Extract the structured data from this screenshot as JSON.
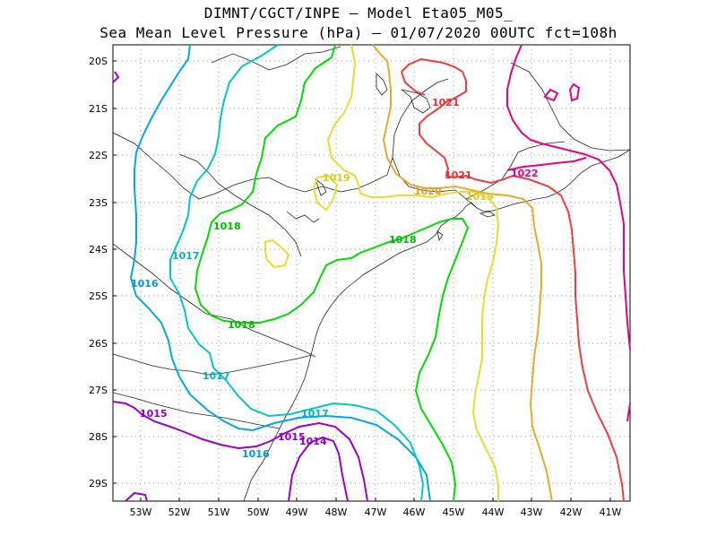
{
  "header": {
    "line1": "DIMNT/CGCT/INPE –  Model Eta05_M05_",
    "line2": "Sea Mean Level Pressure (hPa) – 01/07/2020 00UTC fct=108h"
  },
  "axes": {
    "lat_labels": [
      "20S",
      "21S",
      "22S",
      "23S",
      "24S",
      "25S",
      "26S",
      "27S",
      "28S",
      "29S"
    ],
    "lon_labels": [
      "53W",
      "52W",
      "51W",
      "50W",
      "49W",
      "48W",
      "47W",
      "46W",
      "45W",
      "44W",
      "43W",
      "42W",
      "41W"
    ]
  },
  "colors": {
    "1014": "#9a00c8",
    "1015": "#9a00c8",
    "1016": "#00a8e0",
    "1017": "#00c8c8",
    "1018": "#00dc00",
    "1019": "#e6dc32",
    "1020": "#e6aa28",
    "1021": "#f03c3c",
    "1022": "#e60082"
  },
  "contour_labels": [
    {
      "text": "1021",
      "color": "#e83030"
    },
    {
      "text": "1021",
      "color": "#e83030"
    },
    {
      "text": "1022",
      "color": "#e00080"
    },
    {
      "text": "1019",
      "color": "#d6cc20"
    },
    {
      "text": "1020",
      "color": "#e0a020"
    },
    {
      "text": "1019",
      "color": "#d6cc20"
    },
    {
      "text": "1018",
      "color": "#00b800"
    },
    {
      "text": "1018",
      "color": "#00b800"
    },
    {
      "text": "1018",
      "color": "#00b800"
    },
    {
      "text": "1017",
      "color": "#00b4b4"
    },
    {
      "text": "1016",
      "color": "#0098d0"
    },
    {
      "text": "1017",
      "color": "#00b4b4"
    },
    {
      "text": "1017",
      "color": "#00b4b4"
    },
    {
      "text": "1015",
      "color": "#9000c0"
    },
    {
      "text": "1015",
      "color": "#9000c0"
    },
    {
      "text": "1014",
      "color": "#9000c0"
    },
    {
      "text": "1016",
      "color": "#0098d0"
    }
  ]
}
